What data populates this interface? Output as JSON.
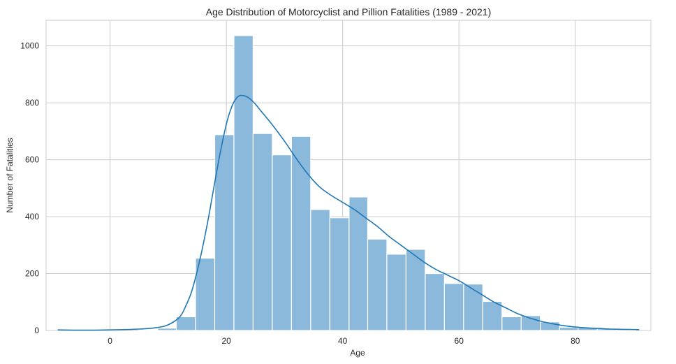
{
  "chart_data": {
    "type": "bar",
    "subtype": "histogram_with_kde",
    "title": "Age Distribution of Motorcyclist and Pillion Fatalities (1989 - 2021)",
    "xlabel": "Age",
    "ylabel": "Number of Fatalities",
    "xlim": [
      -11,
      93
    ],
    "ylim": [
      0,
      1090
    ],
    "xticks": [
      0,
      20,
      40,
      60,
      80
    ],
    "yticks": [
      0,
      200,
      400,
      600,
      800,
      1000
    ],
    "grid": true,
    "bar_color": "#8bb9dc",
    "bar_edge_color": "#ffffff",
    "kde_color": "#1f77b4",
    "bins": [
      {
        "x0": 4.9,
        "x1": 8.2,
        "value": 3
      },
      {
        "x0": 8.2,
        "x1": 11.4,
        "value": 8
      },
      {
        "x0": 11.4,
        "x1": 14.7,
        "value": 48
      },
      {
        "x0": 14.7,
        "x1": 18.0,
        "value": 254
      },
      {
        "x0": 18.0,
        "x1": 21.3,
        "value": 688
      },
      {
        "x0": 21.3,
        "x1": 24.6,
        "value": 1036
      },
      {
        "x0": 24.6,
        "x1": 27.9,
        "value": 692
      },
      {
        "x0": 27.9,
        "x1": 31.2,
        "value": 617
      },
      {
        "x0": 31.2,
        "x1": 34.5,
        "value": 682
      },
      {
        "x0": 34.5,
        "x1": 37.8,
        "value": 425
      },
      {
        "x0": 37.8,
        "x1": 41.1,
        "value": 396
      },
      {
        "x0": 41.1,
        "x1": 44.3,
        "value": 469
      },
      {
        "x0": 44.3,
        "x1": 47.6,
        "value": 321
      },
      {
        "x0": 47.6,
        "x1": 50.9,
        "value": 268
      },
      {
        "x0": 50.9,
        "x1": 54.2,
        "value": 285
      },
      {
        "x0": 54.2,
        "x1": 57.5,
        "value": 200
      },
      {
        "x0": 57.5,
        "x1": 60.8,
        "value": 165
      },
      {
        "x0": 60.8,
        "x1": 64.1,
        "value": 163
      },
      {
        "x0": 64.1,
        "x1": 67.4,
        "value": 102
      },
      {
        "x0": 67.4,
        "x1": 70.7,
        "value": 48
      },
      {
        "x0": 70.7,
        "x1": 74.0,
        "value": 52
      },
      {
        "x0": 74.0,
        "x1": 77.3,
        "value": 30
      },
      {
        "x0": 77.3,
        "x1": 80.5,
        "value": 11
      },
      {
        "x0": 80.5,
        "x1": 83.8,
        "value": 10
      },
      {
        "x0": 83.8,
        "x1": 87.1,
        "value": 6
      },
      {
        "x0": 87.1,
        "x1": 90.4,
        "value": 4
      }
    ],
    "kde_curve": {
      "x": [
        -9,
        -5,
        0,
        5,
        8,
        10,
        12,
        13,
        14,
        15,
        16,
        17,
        18,
        19,
        20,
        21,
        22,
        23,
        24,
        25,
        26,
        28,
        30,
        32,
        34,
        36,
        38,
        40,
        42,
        44,
        46,
        48,
        50,
        52,
        54,
        56,
        58,
        60,
        62,
        64,
        66,
        68,
        70,
        72,
        74,
        76,
        78,
        80,
        82,
        84,
        86,
        88,
        91
      ],
      "y": [
        2,
        1,
        2,
        5,
        10,
        20,
        48,
        85,
        135,
        210,
        300,
        405,
        520,
        630,
        725,
        790,
        822,
        825,
        815,
        795,
        770,
        720,
        665,
        605,
        550,
        505,
        475,
        450,
        425,
        395,
        365,
        330,
        300,
        270,
        240,
        215,
        195,
        175,
        150,
        125,
        100,
        80,
        60,
        45,
        33,
        24,
        17,
        12,
        9,
        7,
        5,
        4,
        3
      ]
    }
  }
}
